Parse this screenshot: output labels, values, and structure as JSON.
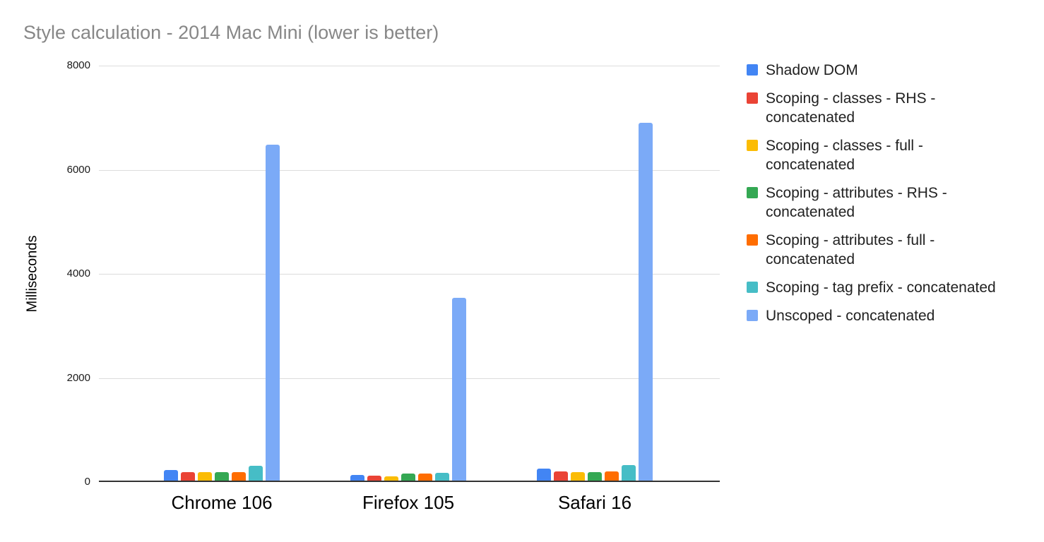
{
  "chart_data": {
    "type": "bar",
    "title": "Style calculation - 2014 Mac Mini (lower is better)",
    "xlabel": "",
    "ylabel": "Milliseconds",
    "categories": [
      "Chrome 106",
      "Firefox 105",
      "Safari 16"
    ],
    "series": [
      {
        "name": "Shadow DOM",
        "color": "#4285F4",
        "values": [
          210,
          110,
          235
        ]
      },
      {
        "name": "Scoping - classes - RHS - concatenated",
        "color": "#EA4335",
        "values": [
          165,
          90,
          175
        ]
      },
      {
        "name": "Scoping - classes - full - concatenated",
        "color": "#FBBC04",
        "values": [
          165,
          80,
          165
        ]
      },
      {
        "name": "Scoping - attributes - RHS - concatenated",
        "color": "#34A853",
        "values": [
          160,
          140,
          165
        ]
      },
      {
        "name": "Scoping - attributes - full - concatenated",
        "color": "#FF6D01",
        "values": [
          160,
          135,
          175
        ]
      },
      {
        "name": "Scoping - tag prefix - concatenated",
        "color": "#46BDC6",
        "values": [
          280,
          155,
          300
        ]
      },
      {
        "name": "Unscoped - concatenated",
        "color": "#7BAAF7",
        "values": [
          6460,
          3510,
          6870
        ]
      }
    ],
    "ylim": [
      0,
      8000
    ],
    "yticks": [
      0,
      2000,
      4000,
      6000,
      8000
    ],
    "grid": "horizontal-on",
    "legend_position": "right"
  }
}
